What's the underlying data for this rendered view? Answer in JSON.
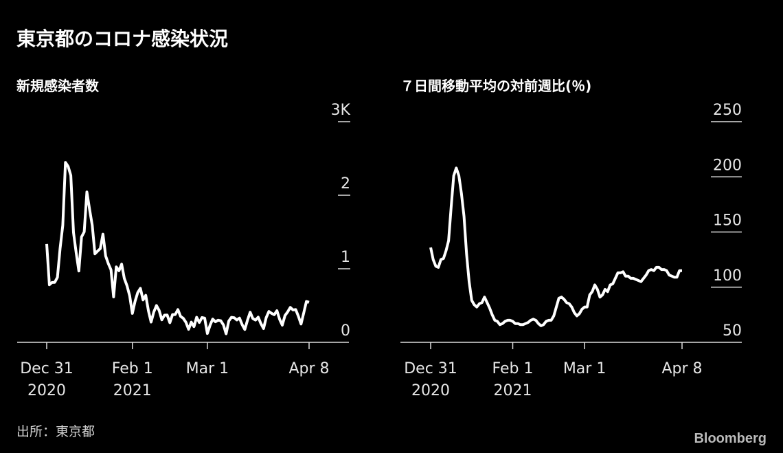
{
  "title": "東京都のコロナ感染状況",
  "source": "出所：東京都",
  "logo": "Bloomberg",
  "chart_data": [
    {
      "type": "line",
      "title": "新規感染者数",
      "x": [
        "2020-12-31",
        "2021-01-01",
        "2021-01-02",
        "2021-01-03",
        "2021-01-04",
        "2021-01-05",
        "2021-01-06",
        "2021-01-07",
        "2021-01-08",
        "2021-01-09",
        "2021-01-10",
        "2021-01-11",
        "2021-01-12",
        "2021-01-13",
        "2021-01-14",
        "2021-01-15",
        "2021-01-16",
        "2021-01-17",
        "2021-01-18",
        "2021-01-19",
        "2021-01-20",
        "2021-01-21",
        "2021-01-22",
        "2021-01-23",
        "2021-01-24",
        "2021-01-25",
        "2021-01-26",
        "2021-01-27",
        "2021-01-28",
        "2021-01-29",
        "2021-01-30",
        "2021-01-31",
        "2021-02-01",
        "2021-02-02",
        "2021-02-03",
        "2021-02-04",
        "2021-02-05",
        "2021-02-06",
        "2021-02-07",
        "2021-02-08",
        "2021-02-09",
        "2021-02-10",
        "2021-02-11",
        "2021-02-12",
        "2021-02-13",
        "2021-02-14",
        "2021-02-15",
        "2021-02-16",
        "2021-02-17",
        "2021-02-18",
        "2021-02-19",
        "2021-02-20",
        "2021-02-21",
        "2021-02-22",
        "2021-02-23",
        "2021-02-24",
        "2021-02-25",
        "2021-02-26",
        "2021-02-27",
        "2021-02-28",
        "2021-03-01",
        "2021-03-02",
        "2021-03-03",
        "2021-03-04",
        "2021-03-05",
        "2021-03-06",
        "2021-03-07",
        "2021-03-08",
        "2021-03-09",
        "2021-03-10",
        "2021-03-11",
        "2021-03-12",
        "2021-03-13",
        "2021-03-14",
        "2021-03-15",
        "2021-03-16",
        "2021-03-17",
        "2021-03-18",
        "2021-03-19",
        "2021-03-20",
        "2021-03-21",
        "2021-03-22",
        "2021-03-23",
        "2021-03-24",
        "2021-03-25",
        "2021-03-26",
        "2021-03-27",
        "2021-03-28",
        "2021-03-29",
        "2021-03-30",
        "2021-03-31",
        "2021-04-01",
        "2021-04-02",
        "2021-04-03",
        "2021-04-04",
        "2021-04-05",
        "2021-04-06",
        "2021-04-07",
        "2021-04-08"
      ],
      "series": [
        {
          "color": "#ffffff",
          "values": [
            1337,
            783,
            814,
            816,
            884,
            1278,
            1591,
            2447,
            2392,
            2268,
            1494,
            1219,
            970,
            1433,
            1502,
            2044,
            1809,
            1592,
            1204,
            1240,
            1274,
            1471,
            1175,
            1070,
            986,
            618,
            1026,
            973,
            1064,
            868,
            769,
            633,
            393,
            556,
            676,
            734,
            577,
            639,
            429,
            276,
            412,
            500,
            434,
            307,
            369,
            371,
            266,
            378,
            378,
            445,
            353,
            327,
            272,
            178,
            275,
            213,
            340,
            270,
            337,
            329,
            121,
            232,
            316,
            279,
            301,
            293,
            237,
            116,
            290,
            340,
            335,
            304,
            330,
            239,
            175,
            300,
            409,
            323,
            303,
            342,
            256,
            187,
            337,
            420,
            394,
            376,
            430,
            313,
            234,
            364,
            414,
            475,
            440,
            446,
            355,
            249,
            399,
            555,
            545
          ]
        }
      ],
      "xlim": [
        "2020-12-31",
        "2021-04-08"
      ],
      "xticks": [
        {
          "value": "2020-12-31",
          "label": [
            "Dec 31",
            "2020"
          ]
        },
        {
          "value": "2021-02-01",
          "label": [
            "Feb 1",
            "2021"
          ]
        },
        {
          "value": "2021-03-01",
          "label": [
            "Mar 1"
          ]
        },
        {
          "value": "2021-04-08",
          "label": [
            "Apr 8"
          ]
        }
      ],
      "ylim": [
        0,
        3000
      ],
      "yticks": [
        0,
        {
          "value": 1000,
          "label": "1"
        },
        {
          "value": 2000,
          "label": "2"
        },
        {
          "value": 3000,
          "label": "3K"
        }
      ]
    },
    {
      "type": "line",
      "title": "７日間移動平均の対前週比(％)",
      "x": [
        "2020-12-31",
        "2021-01-01",
        "2021-01-02",
        "2021-01-03",
        "2021-01-04",
        "2021-01-05",
        "2021-01-06",
        "2021-01-07",
        "2021-01-08",
        "2021-01-09",
        "2021-01-10",
        "2021-01-11",
        "2021-01-12",
        "2021-01-13",
        "2021-01-14",
        "2021-01-15",
        "2021-01-16",
        "2021-01-17",
        "2021-01-18",
        "2021-01-19",
        "2021-01-20",
        "2021-01-21",
        "2021-01-22",
        "2021-01-23",
        "2021-01-24",
        "2021-01-25",
        "2021-01-26",
        "2021-01-27",
        "2021-01-28",
        "2021-01-29",
        "2021-01-30",
        "2021-01-31",
        "2021-02-01",
        "2021-02-02",
        "2021-02-03",
        "2021-02-04",
        "2021-02-05",
        "2021-02-06",
        "2021-02-07",
        "2021-02-08",
        "2021-02-09",
        "2021-02-10",
        "2021-02-11",
        "2021-02-12",
        "2021-02-13",
        "2021-02-14",
        "2021-02-15",
        "2021-02-16",
        "2021-02-17",
        "2021-02-18",
        "2021-02-19",
        "2021-02-20",
        "2021-02-21",
        "2021-02-22",
        "2021-02-23",
        "2021-02-24",
        "2021-02-25",
        "2021-02-26",
        "2021-02-27",
        "2021-02-28",
        "2021-03-01",
        "2021-03-02",
        "2021-03-03",
        "2021-03-04",
        "2021-03-05",
        "2021-03-06",
        "2021-03-07",
        "2021-03-08",
        "2021-03-09",
        "2021-03-10",
        "2021-03-11",
        "2021-03-12",
        "2021-03-13",
        "2021-03-14",
        "2021-03-15",
        "2021-03-16",
        "2021-03-17",
        "2021-03-18",
        "2021-03-19",
        "2021-03-20",
        "2021-03-21",
        "2021-03-22",
        "2021-03-23",
        "2021-03-24",
        "2021-03-25",
        "2021-03-26",
        "2021-03-27",
        "2021-03-28",
        "2021-03-29",
        "2021-03-30",
        "2021-03-31",
        "2021-04-01",
        "2021-04-02",
        "2021-04-03",
        "2021-04-04",
        "2021-04-05",
        "2021-04-06",
        "2021-04-07",
        "2021-04-08"
      ],
      "series": [
        {
          "color": "#ffffff",
          "values": [
            136,
            125,
            119,
            118,
            125,
            126,
            133,
            142,
            173,
            201,
            208,
            201,
            185,
            164,
            130,
            105,
            88,
            84,
            82,
            85,
            86,
            91,
            86,
            81,
            75,
            70,
            69,
            66,
            67,
            69,
            70,
            70,
            69,
            67,
            67,
            66,
            66,
            67,
            68,
            70,
            71,
            70,
            67,
            65,
            66,
            69,
            70,
            70,
            74,
            82,
            90,
            91,
            89,
            86,
            85,
            82,
            77,
            74,
            76,
            80,
            82,
            82,
            93,
            96,
            102,
            98,
            91,
            93,
            98,
            96,
            102,
            103,
            108,
            113,
            113,
            114,
            110,
            110,
            108,
            108,
            107,
            106,
            105,
            108,
            111,
            115,
            116,
            115,
            118,
            118,
            116,
            116,
            115,
            111,
            110,
            109,
            109,
            115,
            115
          ]
        }
      ],
      "xlim": [
        "2020-12-31",
        "2021-04-08"
      ],
      "xticks": [
        {
          "value": "2020-12-31",
          "label": [
            "Dec 31",
            "2020"
          ]
        },
        {
          "value": "2021-02-01",
          "label": [
            "Feb 1",
            "2021"
          ]
        },
        {
          "value": "2021-03-01",
          "label": [
            "Mar 1"
          ]
        },
        {
          "value": "2021-04-08",
          "label": [
            "Apr 8"
          ]
        }
      ],
      "ylim": [
        50,
        250
      ],
      "yticks": [
        50,
        100,
        150,
        200,
        250
      ]
    }
  ]
}
